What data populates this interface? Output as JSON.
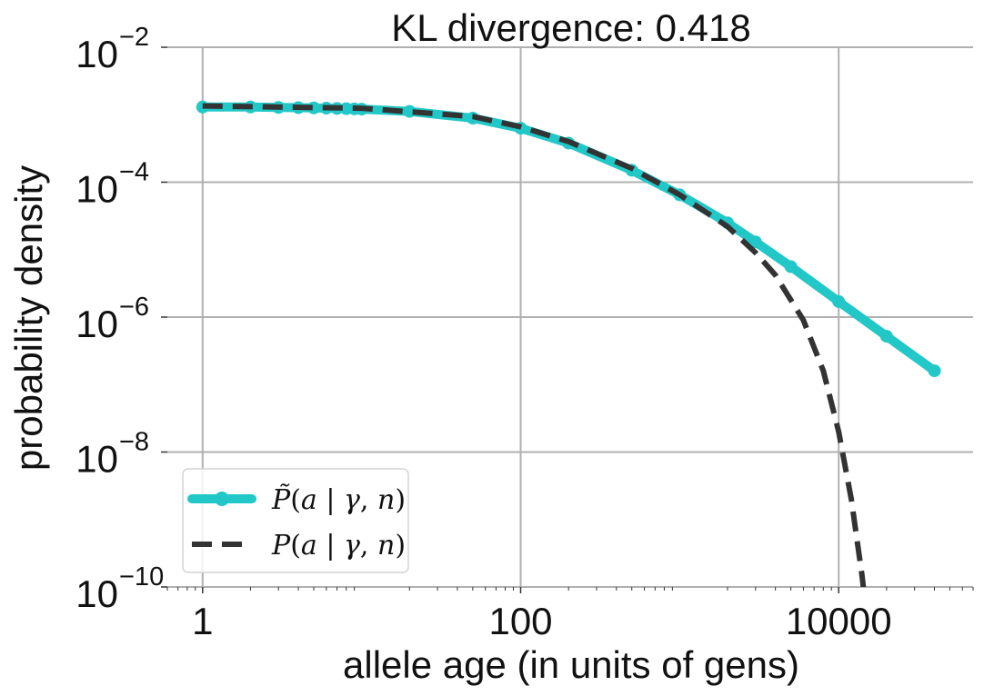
{
  "chart_data": {
    "type": "line",
    "title": "KL divergence: 0.418",
    "xlabel": "allele age (in units of gens)",
    "ylabel": "probability density",
    "x_scale": "log",
    "y_scale": "log",
    "xlim": [
      0.6,
      70000
    ],
    "ylim": [
      1e-10,
      0.01
    ],
    "x_ticks": [
      {
        "value": 1,
        "label": "1"
      },
      {
        "value": 100,
        "label": "100"
      },
      {
        "value": 10000,
        "label": "10000"
      }
    ],
    "y_ticks": [
      {
        "value": 0.01,
        "label": "10",
        "exp": "−2"
      },
      {
        "value": 0.0001,
        "label": "10",
        "exp": "−4"
      },
      {
        "value": 1e-06,
        "label": "10",
        "exp": "−6"
      },
      {
        "value": 1e-08,
        "label": "10",
        "exp": "−8"
      },
      {
        "value": 1e-10,
        "label": "10",
        "exp": "−10"
      }
    ],
    "grid": true,
    "legend_position": "lower-left",
    "series": [
      {
        "name": "P̃(a | γ, n)",
        "legend_parts": [
          "P̃",
          "(",
          "a",
          " | ",
          "γ",
          ", ",
          "n",
          ")"
        ],
        "style": "line-markers",
        "color": "#22c7c7",
        "x": [
          1,
          2,
          3,
          4,
          5,
          6,
          7,
          8,
          9,
          10,
          20,
          50,
          100,
          200,
          500,
          1000,
          2000,
          3000,
          5000,
          10000,
          20000,
          40000
        ],
        "y": [
          0.0013,
          0.0013,
          0.00128,
          0.00127,
          0.00126,
          0.00125,
          0.00124,
          0.00123,
          0.00122,
          0.00121,
          0.00112,
          0.00089,
          0.00063,
          0.00038,
          0.00015,
          6.5e-05,
          2.5e-05,
          1.3e-05,
          5.6e-06,
          1.7e-06,
          5.2e-07,
          1.6e-07
        ]
      },
      {
        "name": "P(a | γ, n)",
        "legend_parts": [
          "P",
          "(",
          "a",
          " | ",
          "γ",
          ", ",
          "n",
          ")"
        ],
        "style": "dashed",
        "color": "#333333",
        "x": [
          1,
          10,
          50,
          100,
          200,
          500,
          1000,
          2000,
          3000,
          4000,
          6000,
          8000,
          10000,
          12000,
          14000,
          16000
        ],
        "y": [
          0.00135,
          0.00125,
          0.00094,
          0.00066,
          0.0004,
          0.00016,
          6.5e-05,
          2.2e-05,
          9e-06,
          4.2e-06,
          9e-07,
          1.6e-07,
          2e-08,
          2e-09,
          1.5e-10,
          1e-11
        ]
      }
    ]
  }
}
